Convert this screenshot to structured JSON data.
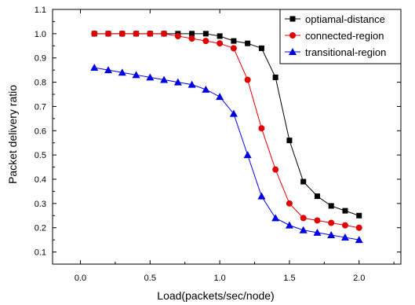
{
  "chart_data": {
    "type": "line",
    "title": "",
    "xlabel": "Load(packets/sec/node)",
    "ylabel": "Packet delivery ratio",
    "xlim": [
      -0.2,
      2.3
    ],
    "ylim": [
      0.05,
      1.1
    ],
    "xticks": [
      "0.0",
      "0.5",
      "1.0",
      "1.5",
      "2.0"
    ],
    "xtick_values": [
      0,
      0.5,
      1.0,
      1.5,
      2.0
    ],
    "yticks": [
      "0.1",
      "0.2",
      "0.3",
      "0.4",
      "0.5",
      "0.6",
      "0.7",
      "0.8",
      "0.9",
      "1.0",
      "1.1"
    ],
    "ytick_values": [
      0.1,
      0.2,
      0.3,
      0.4,
      0.5,
      0.6,
      0.7,
      0.8,
      0.9,
      1.0,
      1.1
    ],
    "grid": false,
    "legend_position": "top-right",
    "x": [
      0.1,
      0.2,
      0.3,
      0.4,
      0.5,
      0.6,
      0.7,
      0.8,
      0.9,
      1.0,
      1.1,
      1.2,
      1.3,
      1.4,
      1.5,
      1.6,
      1.7,
      1.8,
      1.9,
      2.0
    ],
    "series": [
      {
        "name": "optiamal-distance",
        "color": "#000000",
        "marker": "square",
        "values": [
          1.0,
          1.0,
          1.0,
          1.0,
          1.0,
          1.0,
          1.0,
          1.0,
          1.0,
          0.99,
          0.97,
          0.96,
          0.94,
          0.82,
          0.56,
          0.39,
          0.33,
          0.29,
          0.27,
          0.25
        ]
      },
      {
        "name": "connected-region",
        "color": "#e00000",
        "marker": "circle",
        "values": [
          1.0,
          1.0,
          1.0,
          1.0,
          1.0,
          1.0,
          0.99,
          0.98,
          0.97,
          0.96,
          0.94,
          0.81,
          0.61,
          0.44,
          0.3,
          0.24,
          0.23,
          0.22,
          0.21,
          0.2
        ]
      },
      {
        "name": "transitional-region",
        "color": "#0000e0",
        "marker": "triangle",
        "values": [
          0.86,
          0.85,
          0.84,
          0.83,
          0.82,
          0.81,
          0.8,
          0.79,
          0.77,
          0.74,
          0.67,
          0.5,
          0.33,
          0.24,
          0.21,
          0.19,
          0.18,
          0.17,
          0.16,
          0.15
        ]
      }
    ]
  }
}
